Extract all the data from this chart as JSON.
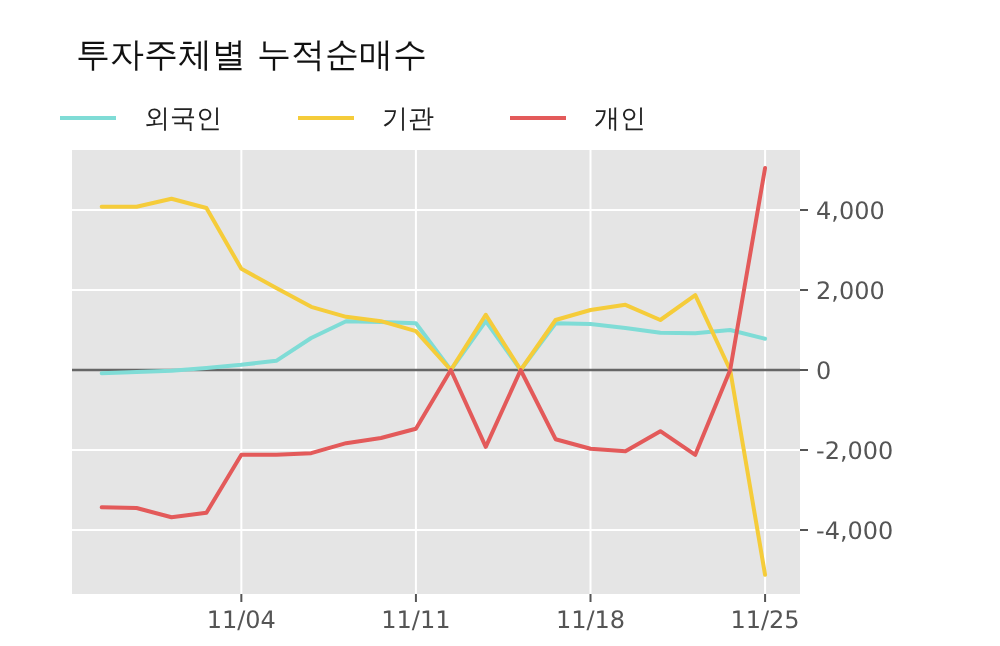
{
  "chart_data": {
    "type": "line",
    "title": "투자주체별 누적순매수",
    "categories": [
      null,
      null,
      null,
      null,
      "11/04",
      null,
      null,
      null,
      null,
      "11/11",
      null,
      null,
      null,
      null,
      "11/18",
      null,
      null,
      null,
      null,
      "11/25"
    ],
    "series": [
      {
        "name": "외국인",
        "color": "#7fdcd6",
        "values": [
          -80,
          -50,
          -20,
          50,
          130,
          230,
          800,
          1220,
          1200,
          1170,
          0,
          1220,
          0,
          1170,
          1150,
          1050,
          930,
          920,
          1000,
          780
        ]
      },
      {
        "name": "기관",
        "color": "#f5cc3a",
        "values": [
          4080,
          4080,
          4280,
          4050,
          2530,
          2050,
          1580,
          1330,
          1220,
          970,
          0,
          1380,
          0,
          1250,
          1500,
          1630,
          1250,
          1870,
          0,
          -5120
        ]
      },
      {
        "name": "개인",
        "color": "#e35a5a",
        "values": [
          -3430,
          -3450,
          -3680,
          -3570,
          -2120,
          -2120,
          -2080,
          -1830,
          -1700,
          -1470,
          0,
          -1920,
          0,
          -1730,
          -1970,
          -2030,
          -1530,
          -2120,
          0,
          5050
        ]
      }
    ],
    "ylim": [
      -5600,
      5500
    ],
    "yticks": [
      {
        "value": -4000,
        "label": "-4,000"
      },
      {
        "value": -2000,
        "label": "-2,000"
      },
      0,
      {
        "value": 2000,
        "label": "2,000"
      },
      {
        "value": 4000,
        "label": "4,000"
      }
    ],
    "ref_lines": [
      {
        "axis": "y",
        "value": 0,
        "color": "#666666"
      }
    ],
    "grid": true,
    "legend": "top left",
    "marker": "none",
    "line_style": "solid"
  }
}
